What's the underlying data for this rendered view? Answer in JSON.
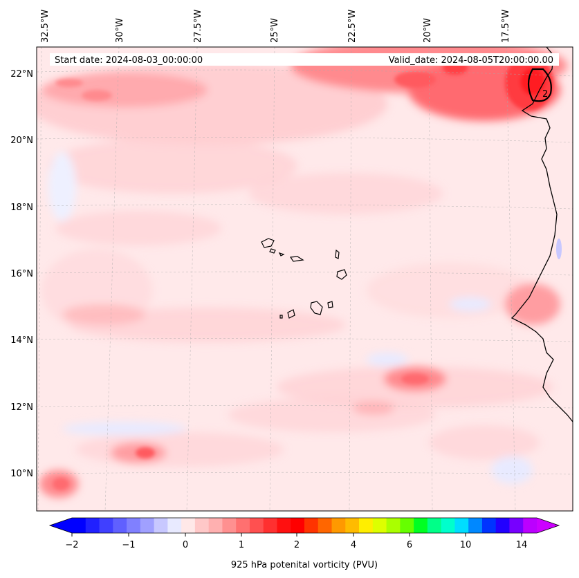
{
  "map": {
    "start_date_label": "Start date: 2024-08-03_00:00:00",
    "valid_date_label": "Valid_date: 2024-08-05T20:00:00.00",
    "contour_label": "2",
    "lon_ticks": [
      "32.5°W",
      "30°W",
      "27.5°W",
      "25°W",
      "22.5°W",
      "20°W",
      "17.5°W"
    ],
    "lat_ticks": [
      "22°N",
      "20°N",
      "18°N",
      "16°N",
      "14°N",
      "12°N",
      "10°N"
    ],
    "gridlines": true,
    "region": "Cape Verde / West African coast"
  },
  "colorbar": {
    "label": "925 hPa potenital vorticity (PVU)",
    "tick_labels": [
      "−2",
      "−1",
      "0",
      "1",
      "2",
      "4",
      "6",
      "10",
      "14"
    ],
    "colors": [
      "#0000ff",
      "#2020ff",
      "#4040ff",
      "#6060ff",
      "#8080ff",
      "#a0a0ff",
      "#c8c8ff",
      "#e8eaff",
      "#ffe8e8",
      "#ffc8c8",
      "#ffb0b0",
      "#ff9090",
      "#ff7070",
      "#ff5050",
      "#ff3030",
      "#ff1010",
      "#ff0000",
      "#ff3300",
      "#ff6600",
      "#ff9900",
      "#ffbb00",
      "#ffee00",
      "#ddff00",
      "#aaff00",
      "#66ff00",
      "#00ff22",
      "#00ff88",
      "#00ffcc",
      "#00ddff",
      "#0088ff",
      "#0033ff",
      "#2200ff",
      "#7700ff",
      "#bb00ff"
    ],
    "arrow_left_color": "#0000ff",
    "arrow_right_color": "#cc00ff"
  }
}
